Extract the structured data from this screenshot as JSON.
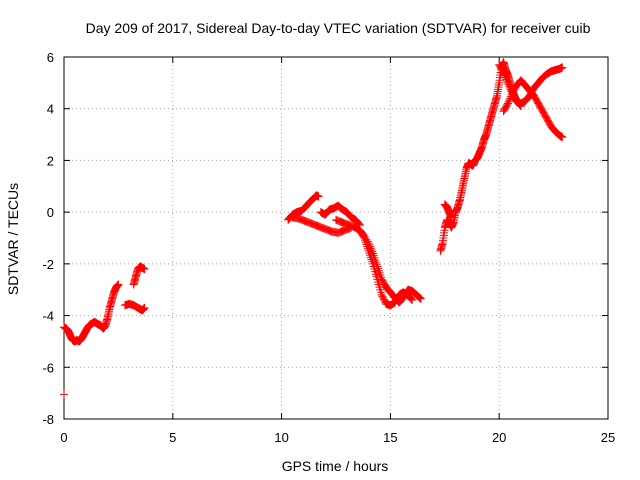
{
  "chart_data": {
    "type": "scatter",
    "title": "Day 209 of 2017, Sidereal Day-to-day VTEC variation (SDTVAR) for receiver cuib",
    "xlabel": "GPS time / hours",
    "ylabel": "SDTVAR / TECUs",
    "xlim": [
      0,
      25
    ],
    "ylim": [
      -8,
      6
    ],
    "xticks": [
      0,
      5,
      10,
      15,
      20,
      25
    ],
    "yticks": [
      -8,
      -6,
      -4,
      -2,
      0,
      2,
      4,
      6
    ],
    "grid": true,
    "marker": "+",
    "color": "#ff0000",
    "series": [
      {
        "name": "outlier",
        "points": [
          [
            0.0,
            -7.05
          ]
        ]
      },
      {
        "name": "segment-1",
        "points": [
          [
            0.0,
            -4.45
          ],
          [
            0.1,
            -4.5
          ],
          [
            0.2,
            -4.6
          ],
          [
            0.3,
            -4.8
          ],
          [
            0.4,
            -4.95
          ],
          [
            0.5,
            -5.0
          ],
          [
            0.6,
            -4.95
          ],
          [
            0.7,
            -5.0
          ],
          [
            0.8,
            -4.9
          ],
          [
            0.9,
            -4.75
          ],
          [
            1.0,
            -4.6
          ],
          [
            1.1,
            -4.45
          ],
          [
            1.2,
            -4.35
          ],
          [
            1.3,
            -4.3
          ],
          [
            1.4,
            -4.25
          ],
          [
            1.5,
            -4.3
          ],
          [
            1.6,
            -4.35
          ],
          [
            1.7,
            -4.4
          ],
          [
            1.8,
            -4.5
          ],
          [
            1.9,
            -4.4
          ],
          [
            2.0,
            -4.1
          ],
          [
            2.1,
            -3.7
          ],
          [
            2.2,
            -3.4
          ],
          [
            2.3,
            -3.1
          ],
          [
            2.4,
            -2.9
          ],
          [
            2.5,
            -2.8
          ]
        ]
      },
      {
        "name": "segment-2",
        "points": [
          [
            2.8,
            -3.6
          ],
          [
            3.0,
            -3.55
          ],
          [
            3.2,
            -3.6
          ],
          [
            3.4,
            -3.7
          ],
          [
            3.5,
            -3.75
          ],
          [
            3.6,
            -3.8
          ],
          [
            3.7,
            -3.7
          ]
        ]
      },
      {
        "name": "segment-3",
        "points": [
          [
            3.2,
            -2.8
          ],
          [
            3.3,
            -2.5
          ],
          [
            3.4,
            -2.2
          ],
          [
            3.5,
            -2.1
          ],
          [
            3.6,
            -2.15
          ],
          [
            3.7,
            -2.2
          ]
        ]
      },
      {
        "name": "segment-4",
        "points": [
          [
            10.3,
            -0.3
          ],
          [
            10.5,
            -0.1
          ],
          [
            10.7,
            0.0
          ],
          [
            10.9,
            0.05
          ],
          [
            11.1,
            0.2
          ],
          [
            11.3,
            0.4
          ],
          [
            11.5,
            0.55
          ],
          [
            11.6,
            0.65
          ],
          [
            11.7,
            0.6
          ]
        ]
      },
      {
        "name": "segment-5",
        "points": [
          [
            10.5,
            -0.2
          ],
          [
            10.8,
            -0.25
          ],
          [
            11.1,
            -0.35
          ],
          [
            11.4,
            -0.45
          ],
          [
            11.7,
            -0.55
          ],
          [
            12.0,
            -0.65
          ],
          [
            12.3,
            -0.75
          ],
          [
            12.6,
            -0.8
          ],
          [
            12.9,
            -0.7
          ],
          [
            13.2,
            -0.6
          ]
        ]
      },
      {
        "name": "segment-6",
        "points": [
          [
            11.8,
            0.0
          ],
          [
            12.0,
            -0.1
          ],
          [
            12.2,
            0.1
          ],
          [
            12.4,
            0.15
          ],
          [
            12.6,
            0.25
          ],
          [
            12.8,
            0.1
          ],
          [
            13.0,
            0.0
          ],
          [
            13.2,
            -0.2
          ],
          [
            13.4,
            -0.3
          ],
          [
            13.6,
            -0.5
          ]
        ]
      },
      {
        "name": "segment-7",
        "points": [
          [
            12.5,
            -0.3
          ],
          [
            12.8,
            -0.4
          ],
          [
            13.1,
            -0.5
          ],
          [
            13.4,
            -0.6
          ],
          [
            13.7,
            -0.8
          ],
          [
            14.0,
            -1.2
          ],
          [
            14.2,
            -1.6
          ],
          [
            14.4,
            -2.1
          ],
          [
            14.6,
            -2.6
          ],
          [
            14.8,
            -2.9
          ],
          [
            15.0,
            -3.1
          ],
          [
            15.2,
            -3.3
          ],
          [
            15.4,
            -3.5
          ],
          [
            15.6,
            -3.3
          ],
          [
            15.8,
            -3.0
          ],
          [
            16.0,
            -3.05
          ],
          [
            16.2,
            -3.2
          ],
          [
            16.4,
            -3.35
          ]
        ]
      },
      {
        "name": "segment-8",
        "points": [
          [
            13.6,
            -0.7
          ],
          [
            13.8,
            -1.0
          ],
          [
            14.0,
            -1.5
          ],
          [
            14.2,
            -2.0
          ],
          [
            14.4,
            -2.6
          ],
          [
            14.6,
            -3.2
          ],
          [
            14.8,
            -3.55
          ],
          [
            15.0,
            -3.6
          ],
          [
            15.2,
            -3.5
          ],
          [
            15.4,
            -3.2
          ],
          [
            15.6,
            -3.1
          ],
          [
            15.8,
            -3.2
          ],
          [
            16.0,
            -3.4
          ]
        ]
      },
      {
        "name": "segment-9",
        "points": [
          [
            17.3,
            -1.5
          ],
          [
            17.4,
            -1.2
          ],
          [
            17.5,
            -0.6
          ],
          [
            17.6,
            -0.3
          ],
          [
            17.7,
            -0.4
          ],
          [
            17.8,
            -0.6
          ],
          [
            17.9,
            -0.4
          ],
          [
            18.0,
            0.0
          ],
          [
            18.1,
            0.2
          ],
          [
            18.2,
            0.5
          ],
          [
            18.3,
            0.9
          ],
          [
            18.4,
            1.3
          ],
          [
            18.5,
            1.7
          ],
          [
            18.6,
            1.9
          ],
          [
            18.7,
            1.85
          ],
          [
            18.8,
            1.8
          ],
          [
            18.9,
            2.0
          ],
          [
            19.0,
            2.1
          ],
          [
            19.1,
            2.3
          ],
          [
            19.2,
            2.5
          ],
          [
            19.3,
            2.8
          ],
          [
            19.4,
            3.0
          ],
          [
            19.5,
            3.3
          ],
          [
            19.6,
            3.6
          ],
          [
            19.7,
            3.9
          ],
          [
            19.8,
            4.2
          ],
          [
            19.9,
            4.5
          ],
          [
            20.0,
            5.0
          ],
          [
            20.1,
            5.6
          ],
          [
            20.2,
            5.8
          ],
          [
            20.3,
            5.5
          ],
          [
            20.4,
            5.3
          ],
          [
            20.5,
            5.0
          ],
          [
            20.6,
            4.7
          ],
          [
            20.7,
            4.5
          ],
          [
            20.8,
            4.3
          ],
          [
            20.9,
            4.2
          ],
          [
            21.0,
            4.1
          ]
        ]
      },
      {
        "name": "segment-10",
        "points": [
          [
            17.5,
            0.3
          ],
          [
            17.6,
            0.2
          ],
          [
            17.7,
            0.0
          ],
          [
            17.8,
            -0.2
          ]
        ]
      },
      {
        "name": "segment-11",
        "points": [
          [
            20.0,
            5.7
          ],
          [
            20.2,
            5.4
          ],
          [
            20.4,
            5.0
          ],
          [
            20.6,
            4.6
          ],
          [
            20.8,
            4.3
          ],
          [
            21.0,
            4.2
          ],
          [
            21.2,
            4.3
          ],
          [
            21.4,
            4.5
          ],
          [
            21.6,
            4.8
          ],
          [
            21.8,
            5.0
          ],
          [
            22.0,
            5.2
          ],
          [
            22.2,
            5.35
          ],
          [
            22.4,
            5.45
          ],
          [
            22.6,
            5.5
          ],
          [
            22.8,
            5.55
          ],
          [
            22.9,
            5.6
          ]
        ]
      },
      {
        "name": "segment-12",
        "points": [
          [
            20.2,
            3.9
          ],
          [
            20.4,
            4.2
          ],
          [
            20.6,
            4.6
          ],
          [
            20.8,
            4.9
          ],
          [
            21.0,
            5.1
          ],
          [
            21.2,
            4.9
          ],
          [
            21.4,
            4.7
          ],
          [
            21.6,
            4.5
          ],
          [
            21.8,
            4.2
          ],
          [
            22.0,
            3.9
          ],
          [
            22.2,
            3.6
          ],
          [
            22.4,
            3.3
          ],
          [
            22.6,
            3.1
          ],
          [
            22.8,
            2.95
          ],
          [
            22.9,
            2.9
          ]
        ]
      }
    ]
  }
}
